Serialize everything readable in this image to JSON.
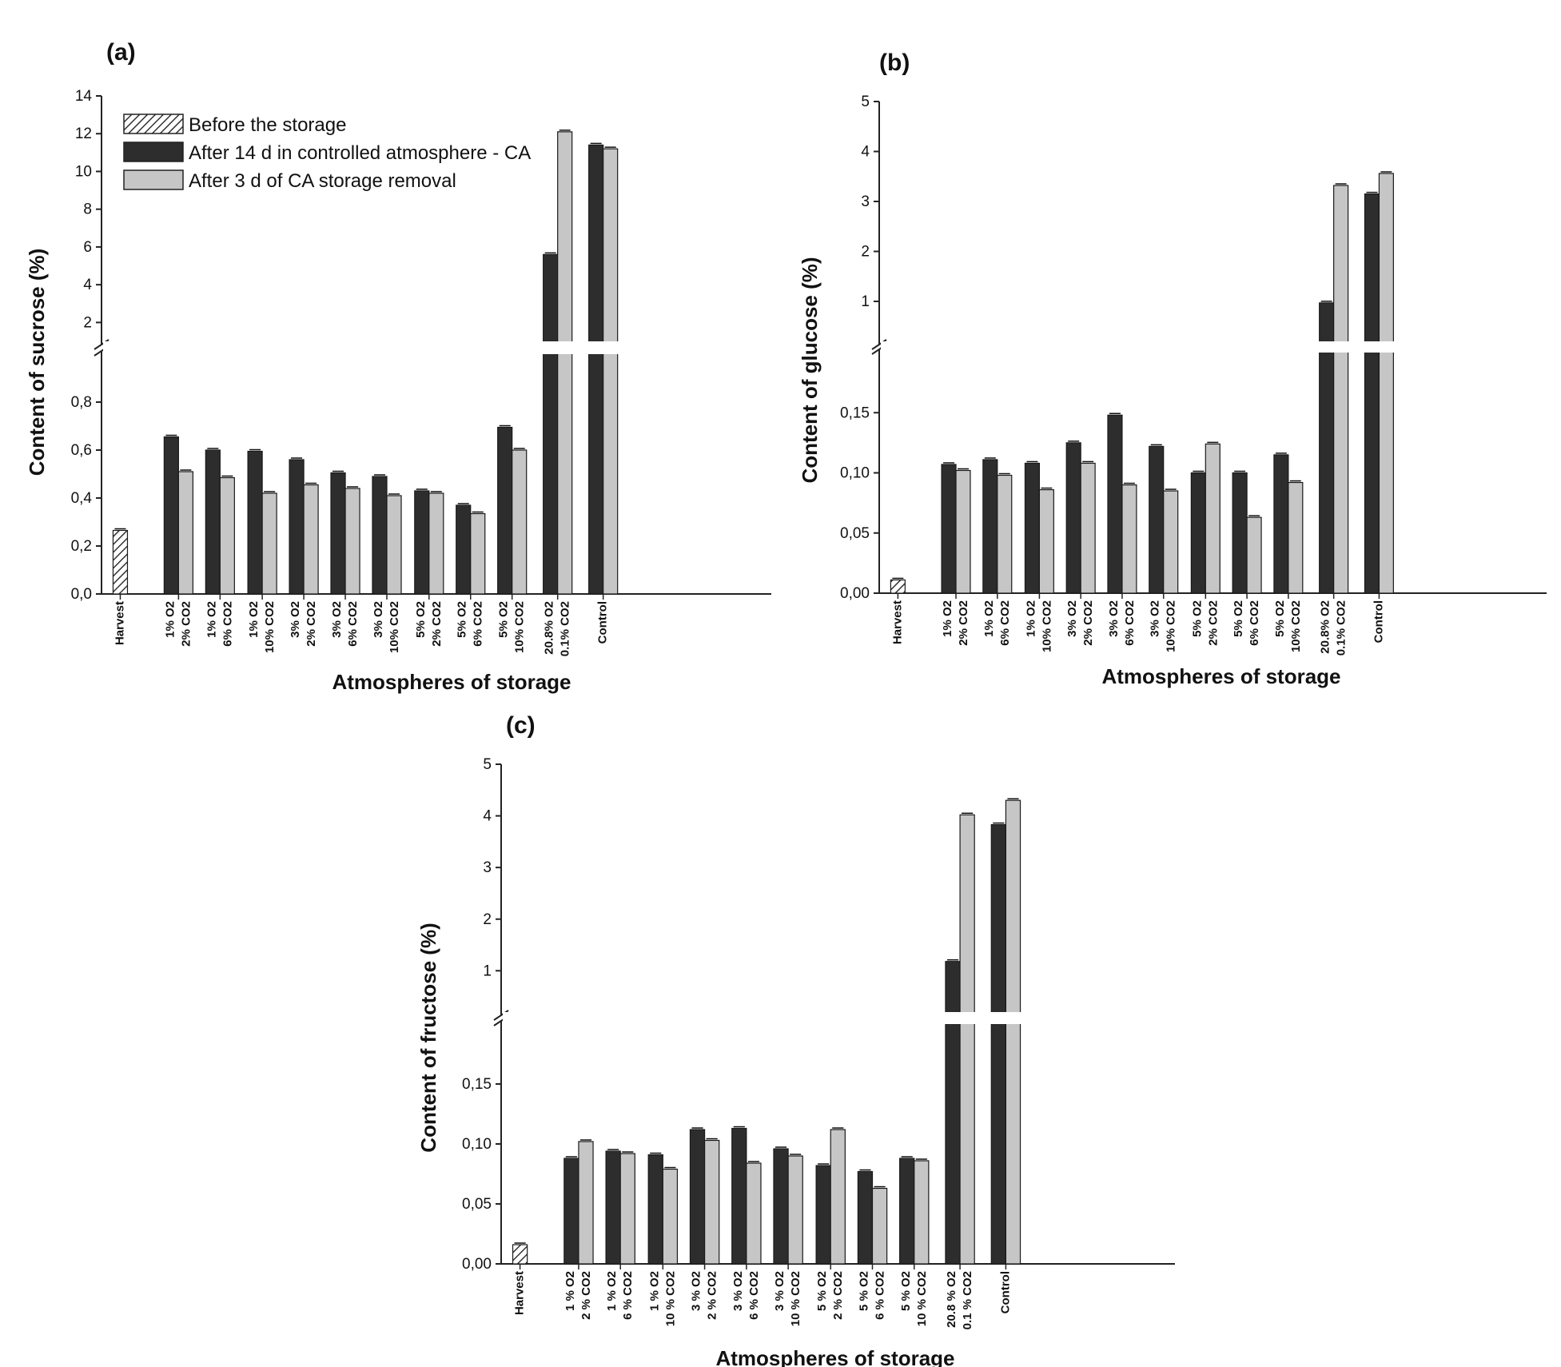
{
  "colors": {
    "hatch": "#333333",
    "dark": "#2d2d2d",
    "light": "#c6c6c6",
    "axis": "#222222"
  },
  "legend": {
    "before": "Before the storage",
    "after14": "After 14 d in controlled atmosphere - CA",
    "after3": "After 3 d of CA storage removal"
  },
  "chart_data": [
    {
      "type": "bar",
      "panel": "(a)",
      "ylabel": "Content of sucrose (%)",
      "xlabel": "Atmospheres of storage",
      "axis_break": true,
      "ylim_lower": [
        0,
        1.0
      ],
      "yticks_lower": [
        "0,0",
        "0,2",
        "0,4",
        "0,6",
        "0,8"
      ],
      "ylim_upper": [
        1.0,
        14
      ],
      "yticks_upper": [
        "2",
        "4",
        "6",
        "8",
        "10",
        "12",
        "14"
      ],
      "categories": [
        [
          "Harvest"
        ],
        [
          "1% O2",
          "2% CO2"
        ],
        [
          "1% O2",
          "6% CO2"
        ],
        [
          "1% O2",
          "10% CO2"
        ],
        [
          "3% O2",
          "2% CO2"
        ],
        [
          "3% O2",
          "6% CO2"
        ],
        [
          "3% O2",
          "10% CO2"
        ],
        [
          "5% O2",
          "2% CO2"
        ],
        [
          "5% O2",
          "6% CO2"
        ],
        [
          "5% O2",
          "10% CO2"
        ],
        [
          "20.8% O2",
          "0.1% CO2"
        ],
        [
          "Control"
        ]
      ],
      "series": [
        {
          "name": "Before the storage",
          "values": [
            0.265,
            null,
            null,
            null,
            null,
            null,
            null,
            null,
            null,
            null,
            null,
            null
          ]
        },
        {
          "name": "After 14 d in controlled atmosphere - CA",
          "values": [
            null,
            0.655,
            0.6,
            0.595,
            0.56,
            0.505,
            0.49,
            0.43,
            0.37,
            0.695,
            5.6,
            11.4
          ]
        },
        {
          "name": "After 3 d of CA storage removal",
          "values": [
            null,
            0.51,
            0.485,
            0.42,
            0.455,
            0.44,
            0.41,
            0.42,
            0.335,
            0.6,
            12.1,
            11.2
          ]
        }
      ]
    },
    {
      "type": "bar",
      "panel": "(b)",
      "ylabel": "Content of glucose (%)",
      "xlabel": "Atmospheres of storage",
      "axis_break": true,
      "ylim_lower": [
        0,
        0.2
      ],
      "yticks_lower": [
        "0,00",
        "0,05",
        "0,10",
        "0,15"
      ],
      "ylim_upper": [
        0.2,
        5
      ],
      "yticks_upper": [
        "1",
        "2",
        "3",
        "4",
        "5"
      ],
      "categories": [
        [
          "Harvest"
        ],
        [
          "1% O2",
          "2% CO2"
        ],
        [
          "1% O2",
          "6% CO2"
        ],
        [
          "1% O2",
          "10% CO2"
        ],
        [
          "3% O2",
          "2% CO2"
        ],
        [
          "3% O2",
          "6% CO2"
        ],
        [
          "3% O2",
          "10% CO2"
        ],
        [
          "5% O2",
          "2% CO2"
        ],
        [
          "5% O2",
          "6% CO2"
        ],
        [
          "5% O2",
          "10% CO2"
        ],
        [
          "20.8% O2",
          "0.1% CO2"
        ],
        [
          "Control"
        ]
      ],
      "series": [
        {
          "name": "Before the storage",
          "values": [
            0.011,
            null,
            null,
            null,
            null,
            null,
            null,
            null,
            null,
            null,
            null,
            null
          ]
        },
        {
          "name": "After 14 d in controlled atmosphere - CA",
          "values": [
            null,
            0.107,
            0.111,
            0.108,
            0.125,
            0.148,
            0.122,
            0.1,
            0.1,
            0.115,
            0.97,
            3.15
          ]
        },
        {
          "name": "After 3 d of CA storage removal",
          "values": [
            null,
            0.102,
            0.098,
            0.086,
            0.108,
            0.09,
            0.085,
            0.124,
            0.063,
            0.092,
            3.32,
            3.56
          ]
        }
      ]
    },
    {
      "type": "bar",
      "panel": "(c)",
      "ylabel": "Content of fructose (%)",
      "xlabel": "Atmospheres of storage",
      "axis_break": true,
      "ylim_lower": [
        0,
        0.2
      ],
      "yticks_lower": [
        "0,00",
        "0,05",
        "0,10",
        "0,15"
      ],
      "ylim_upper": [
        0.2,
        5
      ],
      "yticks_upper": [
        "1",
        "2",
        "3",
        "4",
        "5"
      ],
      "categories": [
        [
          "Harvest"
        ],
        [
          "1 % O2",
          "2 % CO2"
        ],
        [
          "1 % O2",
          "6 % CO2"
        ],
        [
          "1 % O2",
          "10 % CO2"
        ],
        [
          "3 % O2",
          "2 % CO2"
        ],
        [
          "3 % O2",
          "6 % CO2"
        ],
        [
          "3 % O2",
          "10 % CO2"
        ],
        [
          "5 % O2",
          "2 % CO2"
        ],
        [
          "5 % O2",
          "6 % CO2"
        ],
        [
          "5 % O2",
          "10 % CO2"
        ],
        [
          "20.8 % O2",
          "0.1 % CO2"
        ],
        [
          "Control"
        ]
      ],
      "series": [
        {
          "name": "Before the storage",
          "values": [
            0.016,
            null,
            null,
            null,
            null,
            null,
            null,
            null,
            null,
            null,
            null,
            null
          ]
        },
        {
          "name": "After 14 d in controlled atmosphere - CA",
          "values": [
            null,
            0.088,
            0.094,
            0.091,
            0.112,
            0.113,
            0.096,
            0.082,
            0.077,
            0.088,
            1.18,
            3.83
          ]
        },
        {
          "name": "After 3 d of CA storage removal",
          "values": [
            null,
            0.102,
            0.092,
            0.079,
            0.103,
            0.084,
            0.09,
            0.112,
            0.063,
            0.086,
            4.02,
            4.3
          ]
        }
      ]
    }
  ]
}
